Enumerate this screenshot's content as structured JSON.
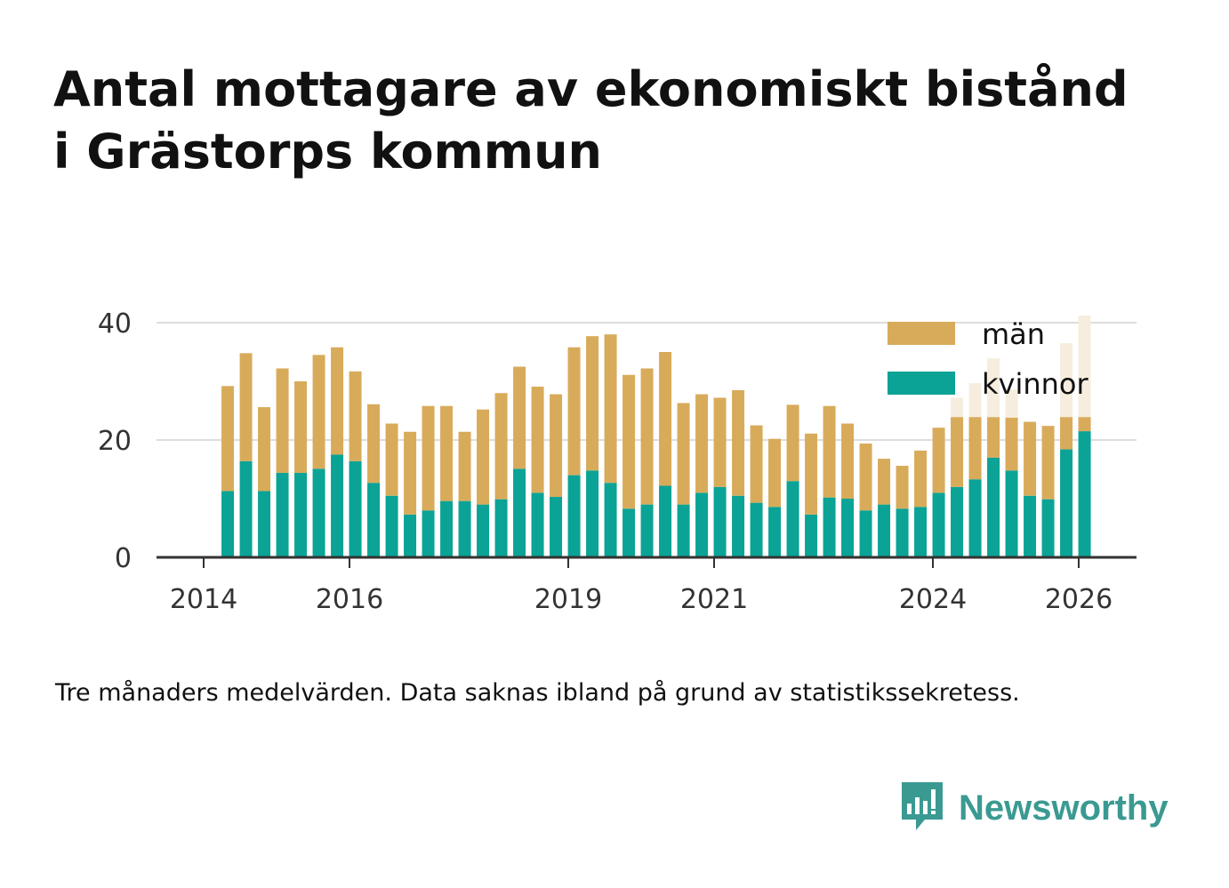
{
  "title_line1": "Antal mottagare av ekonomiskt bistånd",
  "title_line2": "i Grästorps kommun",
  "footnote": "Tre månaders medelvärden. Data saknas ibland på grund av statistikssekretess.",
  "brand": {
    "name": "Newsworthy",
    "icon": "newsworthy-logo-icon"
  },
  "colors": {
    "men": "#d8ab5b",
    "women": "#0aa396",
    "men_faded": "#f6eddf",
    "grid": "#dddddd",
    "axis": "#333333",
    "brand": "#3a9a92"
  },
  "chart_data": {
    "type": "bar",
    "stacked": true,
    "xlabel": "",
    "ylabel": "",
    "ylim": [
      0,
      40
    ],
    "yticks": [
      0,
      20,
      40
    ],
    "xlim": [
      2014,
      2026.6
    ],
    "xticks": [
      2014,
      2016,
      2019,
      2021,
      2024,
      2026
    ],
    "grid": true,
    "legend_position": "top-right",
    "x": [
      2014.33,
      2014.58,
      2014.83,
      2015.08,
      2015.33,
      2015.58,
      2015.83,
      2016.08,
      2016.33,
      2016.58,
      2016.83,
      2017.08,
      2017.33,
      2017.58,
      2017.83,
      2018.08,
      2018.33,
      2018.58,
      2018.83,
      2019.08,
      2019.33,
      2019.58,
      2019.83,
      2020.08,
      2020.33,
      2020.58,
      2020.83,
      2021.08,
      2021.33,
      2021.58,
      2021.83,
      2022.08,
      2022.33,
      2022.58,
      2022.83,
      2023.08,
      2023.33,
      2023.58,
      2023.83,
      2024.08,
      2024.33,
      2024.58,
      2024.83,
      2025.08,
      2025.33,
      2025.58,
      2025.83,
      2026.08
    ],
    "series": [
      {
        "name": "kvinnor",
        "values": [
          11.3,
          16.4,
          11.3,
          14.4,
          14.4,
          15.1,
          17.5,
          16.4,
          12.7,
          10.5,
          7.3,
          8.0,
          9.6,
          9.6,
          9.0,
          9.9,
          15.1,
          11.0,
          10.3,
          14.0,
          14.8,
          12.7,
          8.3,
          9.0,
          12.2,
          9.0,
          11.0,
          12.0,
          10.5,
          9.3,
          8.6,
          13.0,
          7.3,
          10.2,
          10.0,
          8.0,
          9.0,
          8.3,
          8.6,
          11.0,
          12.0,
          13.3,
          17.0,
          14.8,
          10.5,
          9.9,
          18.4,
          21.5
        ]
      },
      {
        "name": "män",
        "values": [
          17.9,
          18.4,
          14.3,
          17.8,
          15.6,
          19.4,
          18.3,
          15.3,
          13.4,
          12.3,
          14.1,
          17.8,
          16.2,
          11.8,
          16.2,
          18.1,
          17.4,
          18.1,
          17.5,
          21.8,
          22.9,
          25.3,
          22.8,
          23.2,
          22.8,
          17.3,
          16.8,
          15.2,
          18.0,
          13.2,
          11.6,
          13.0,
          13.8,
          15.6,
          12.8,
          11.4,
          7.8,
          7.3,
          9.6,
          11.1,
          11.9,
          10.6,
          6.9,
          9.0,
          12.6,
          12.5,
          5.5,
          2.4
        ]
      }
    ],
    "faded_totals": [
      {
        "x": 2024.33,
        "total": 27.2
      },
      {
        "x": 2024.58,
        "total": 29.7
      },
      {
        "x": 2024.83,
        "total": 33.9
      },
      {
        "x": 2025.08,
        "total": 28.6
      },
      {
        "x": 2025.83,
        "total": 36.5
      },
      {
        "x": 2026.08,
        "total": 41.2
      }
    ],
    "legend": [
      "män",
      "kvinnor"
    ]
  }
}
